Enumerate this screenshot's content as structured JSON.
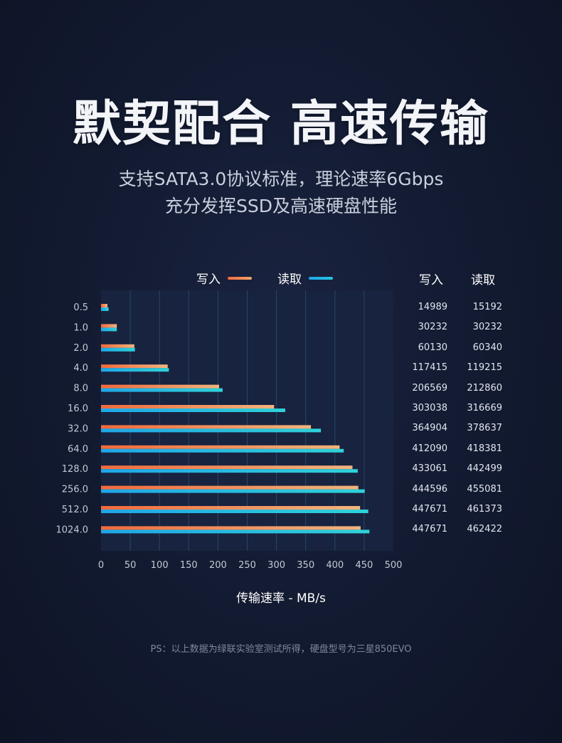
{
  "headline": "默契配合 高速传输",
  "subtitle_line1": "支持SATA3.0协议标准，理论速率6Gbps",
  "subtitle_line2": "充分发挥SSD及高速硬盘性能",
  "legend": {
    "write_label": "写入",
    "read_label": "读取",
    "write_color": "#f26a3c",
    "read_color": "#1ea7e8"
  },
  "table": {
    "write_header": "写入",
    "read_header": "读取"
  },
  "footnote": "PS：以上数据为绿联实验室测试所得，硬盘型号为三星850EVO",
  "chart_data": {
    "type": "bar",
    "orientation": "horizontal",
    "categories": [
      "0.5",
      "1.0",
      "2.0",
      "4.0",
      "8.0",
      "16.0",
      "32.0",
      "64.0",
      "128.0",
      "256.0",
      "512.0",
      "1024.0"
    ],
    "series": [
      {
        "name": "写入",
        "values": [
          11,
          27,
          57,
          114,
          202,
          296,
          359,
          408,
          430,
          440,
          443,
          444
        ],
        "table_values": [
          "14989",
          "30232",
          "60130",
          "117415",
          "206569",
          "303038",
          "364904",
          "412090",
          "433061",
          "444596",
          "447671",
          "447671"
        ]
      },
      {
        "name": "读取",
        "values": [
          13,
          27,
          58,
          116,
          208,
          315,
          376,
          415,
          439,
          451,
          457,
          459
        ],
        "table_values": [
          "15192",
          "30232",
          "60340",
          "119215",
          "212860",
          "316669",
          "378637",
          "418381",
          "442499",
          "455081",
          "461373",
          "462422"
        ]
      }
    ],
    "xlabel": "传输速率 - MB/s",
    "xlim": [
      0,
      500
    ],
    "xticks": [
      "0",
      "50",
      "100",
      "150",
      "200",
      "250",
      "300",
      "350",
      "400",
      "450",
      "500"
    ],
    "grid": true,
    "legend_position": "top"
  }
}
